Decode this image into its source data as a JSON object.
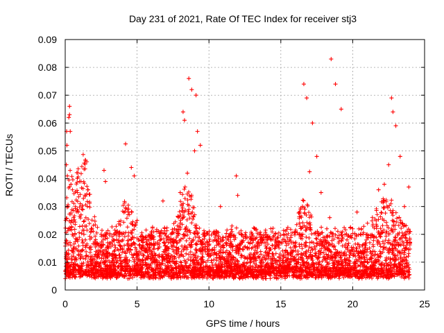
{
  "chart_data": {
    "type": "scatter",
    "title": "Day 231 of 2021, Rate Of TEC Index for receiver stj3",
    "xlabel": "GPS time / hours",
    "ylabel": "ROTI / TECUs",
    "xlim": [
      0,
      25
    ],
    "ylim": [
      0,
      0.09
    ],
    "x_ticks": [
      "0",
      "5",
      "10",
      "15",
      "20",
      "25"
    ],
    "y_ticks": [
      "0",
      "0.01",
      "0.02",
      "0.03",
      "0.04",
      "0.05",
      "0.06",
      "0.07",
      "0.08",
      "0.09"
    ],
    "grid": true,
    "marker": "+",
    "color": "#ff0000",
    "series": [
      {
        "x": [
          0.05,
          0.08,
          0.1,
          0.12,
          0.15,
          0.2,
          0.25,
          0.3,
          0.3,
          0.35,
          0.4,
          0.45,
          0.5,
          0.55,
          0.6,
          0.7,
          0.8,
          0.9,
          1.0,
          1.05,
          1.1,
          1.2,
          1.3,
          1.4,
          1.5,
          1.6,
          1.8,
          2.0,
          2.2,
          2.5,
          2.7,
          2.8,
          3.0,
          3.3,
          3.6,
          4.0,
          4.2,
          4.4,
          4.6,
          4.8,
          5.0,
          5.4,
          5.8,
          6.2,
          6.5,
          6.8,
          7.2,
          7.6,
          8.0,
          8.2,
          8.3,
          8.5,
          8.6,
          8.8,
          9.0,
          9.1,
          9.2,
          9.4,
          9.6,
          10.0,
          10.4,
          10.8,
          11.2,
          11.6,
          11.9,
          12.0,
          12.4,
          12.8,
          13.2,
          13.6,
          14.0,
          14.4,
          14.8,
          15.2,
          15.6,
          16.0,
          16.3,
          16.5,
          16.6,
          16.8,
          17.0,
          17.2,
          17.5,
          17.8,
          18.2,
          18.4,
          18.5,
          18.8,
          19.2,
          19.6,
          20.0,
          20.3,
          20.6,
          21.0,
          21.4,
          21.8,
          22.2,
          22.5,
          22.7,
          22.8,
          23.0,
          23.3,
          23.6,
          23.9,
          24.0
        ],
        "y": [
          0.012,
          0.045,
          0.057,
          0.052,
          0.041,
          0.03,
          0.062,
          0.063,
          0.066,
          0.057,
          0.038,
          0.025,
          0.02,
          0.015,
          0.012,
          0.011,
          0.018,
          0.028,
          0.039,
          0.031,
          0.027,
          0.023,
          0.02,
          0.018,
          0.016,
          0.012,
          0.009,
          0.008,
          0.012,
          0.02,
          0.043,
          0.039,
          0.015,
          0.012,
          0.01,
          0.018,
          0.0525,
          0.028,
          0.044,
          0.041,
          0.025,
          0.018,
          0.012,
          0.016,
          0.021,
          0.032,
          0.013,
          0.022,
          0.035,
          0.064,
          0.061,
          0.042,
          0.076,
          0.072,
          0.05,
          0.07,
          0.057,
          0.052,
          0.02,
          0.016,
          0.018,
          0.03,
          0.017,
          0.023,
          0.041,
          0.034,
          0.019,
          0.015,
          0.022,
          0.018,
          0.015,
          0.016,
          0.019,
          0.02,
          0.018,
          0.021,
          0.024,
          0.03,
          0.074,
          0.069,
          0.0425,
          0.06,
          0.048,
          0.035,
          0.022,
          0.026,
          0.083,
          0.074,
          0.065,
          0.018,
          0.022,
          0.028,
          0.022,
          0.02,
          0.023,
          0.036,
          0.038,
          0.045,
          0.069,
          0.064,
          0.059,
          0.048,
          0.03,
          0.037,
          0.021
        ]
      }
    ]
  }
}
